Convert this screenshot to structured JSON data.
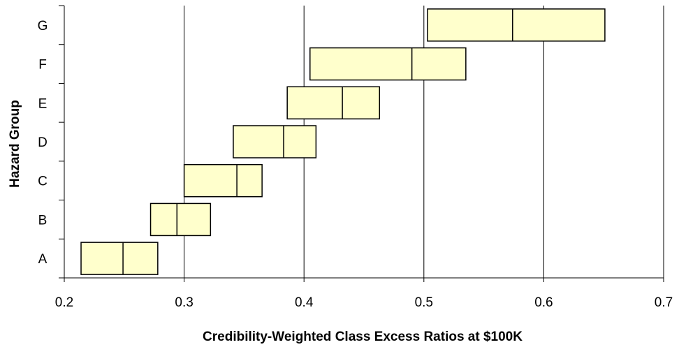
{
  "chart_data": {
    "type": "boxplot",
    "title": "",
    "xlabel": "Credibility-Weighted Class Excess Ratios at $100K",
    "ylabel": "Hazard Group",
    "xlim": [
      0.2,
      0.7
    ],
    "x_ticks": [
      "0.2",
      "0.3",
      "0.4",
      "0.5",
      "0.6",
      "0.7"
    ],
    "categories": [
      "A",
      "B",
      "C",
      "D",
      "E",
      "F",
      "G"
    ],
    "boxes": [
      {
        "group": "A",
        "low": 0.214,
        "median": 0.249,
        "high": 0.278
      },
      {
        "group": "B",
        "low": 0.272,
        "median": 0.294,
        "high": 0.322
      },
      {
        "group": "C",
        "low": 0.3,
        "median": 0.344,
        "high": 0.365
      },
      {
        "group": "D",
        "low": 0.341,
        "median": 0.383,
        "high": 0.41
      },
      {
        "group": "E",
        "low": 0.386,
        "median": 0.432,
        "high": 0.463
      },
      {
        "group": "F",
        "low": 0.405,
        "median": 0.49,
        "high": 0.535
      },
      {
        "group": "G",
        "low": 0.503,
        "median": 0.574,
        "high": 0.651
      }
    ],
    "grid": "vertical",
    "legend": "none",
    "box_fill": "#ffffcc",
    "box_stroke": "#000000"
  }
}
